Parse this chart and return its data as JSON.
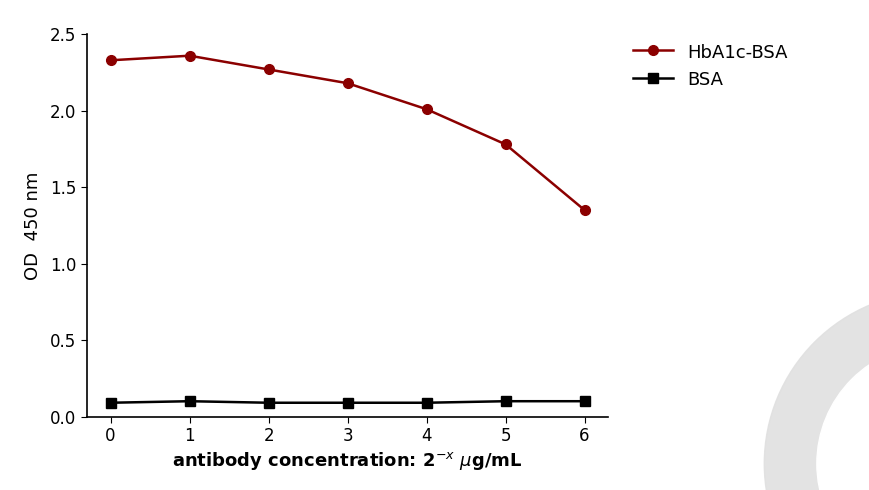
{
  "x": [
    0,
    1,
    2,
    3,
    4,
    5,
    6
  ],
  "hba1c_bsa": [
    2.33,
    2.36,
    2.27,
    2.18,
    2.01,
    1.78,
    1.35
  ],
  "bsa": [
    0.09,
    0.1,
    0.09,
    0.09,
    0.09,
    0.1,
    0.1
  ],
  "hba1c_color": "#8B0000",
  "bsa_color": "#000000",
  "hba1c_label": "HbA1c-BSA",
  "bsa_label": "BSA",
  "ylabel": "OD  450 nm",
  "ylim": [
    0,
    2.5
  ],
  "yticks": [
    0.0,
    0.5,
    1.0,
    1.5,
    2.0,
    2.5
  ],
  "xlim": [
    -0.3,
    6.3
  ],
  "xticks": [
    0,
    1,
    2,
    3,
    4,
    5,
    6
  ],
  "bg_color": "#ffffff",
  "marker_size": 7,
  "linewidth": 1.8,
  "label_fontsize": 13,
  "tick_fontsize": 12,
  "legend_fontsize": 13,
  "ring_color": "#e0e0e0",
  "ring_alpha": 0.9
}
